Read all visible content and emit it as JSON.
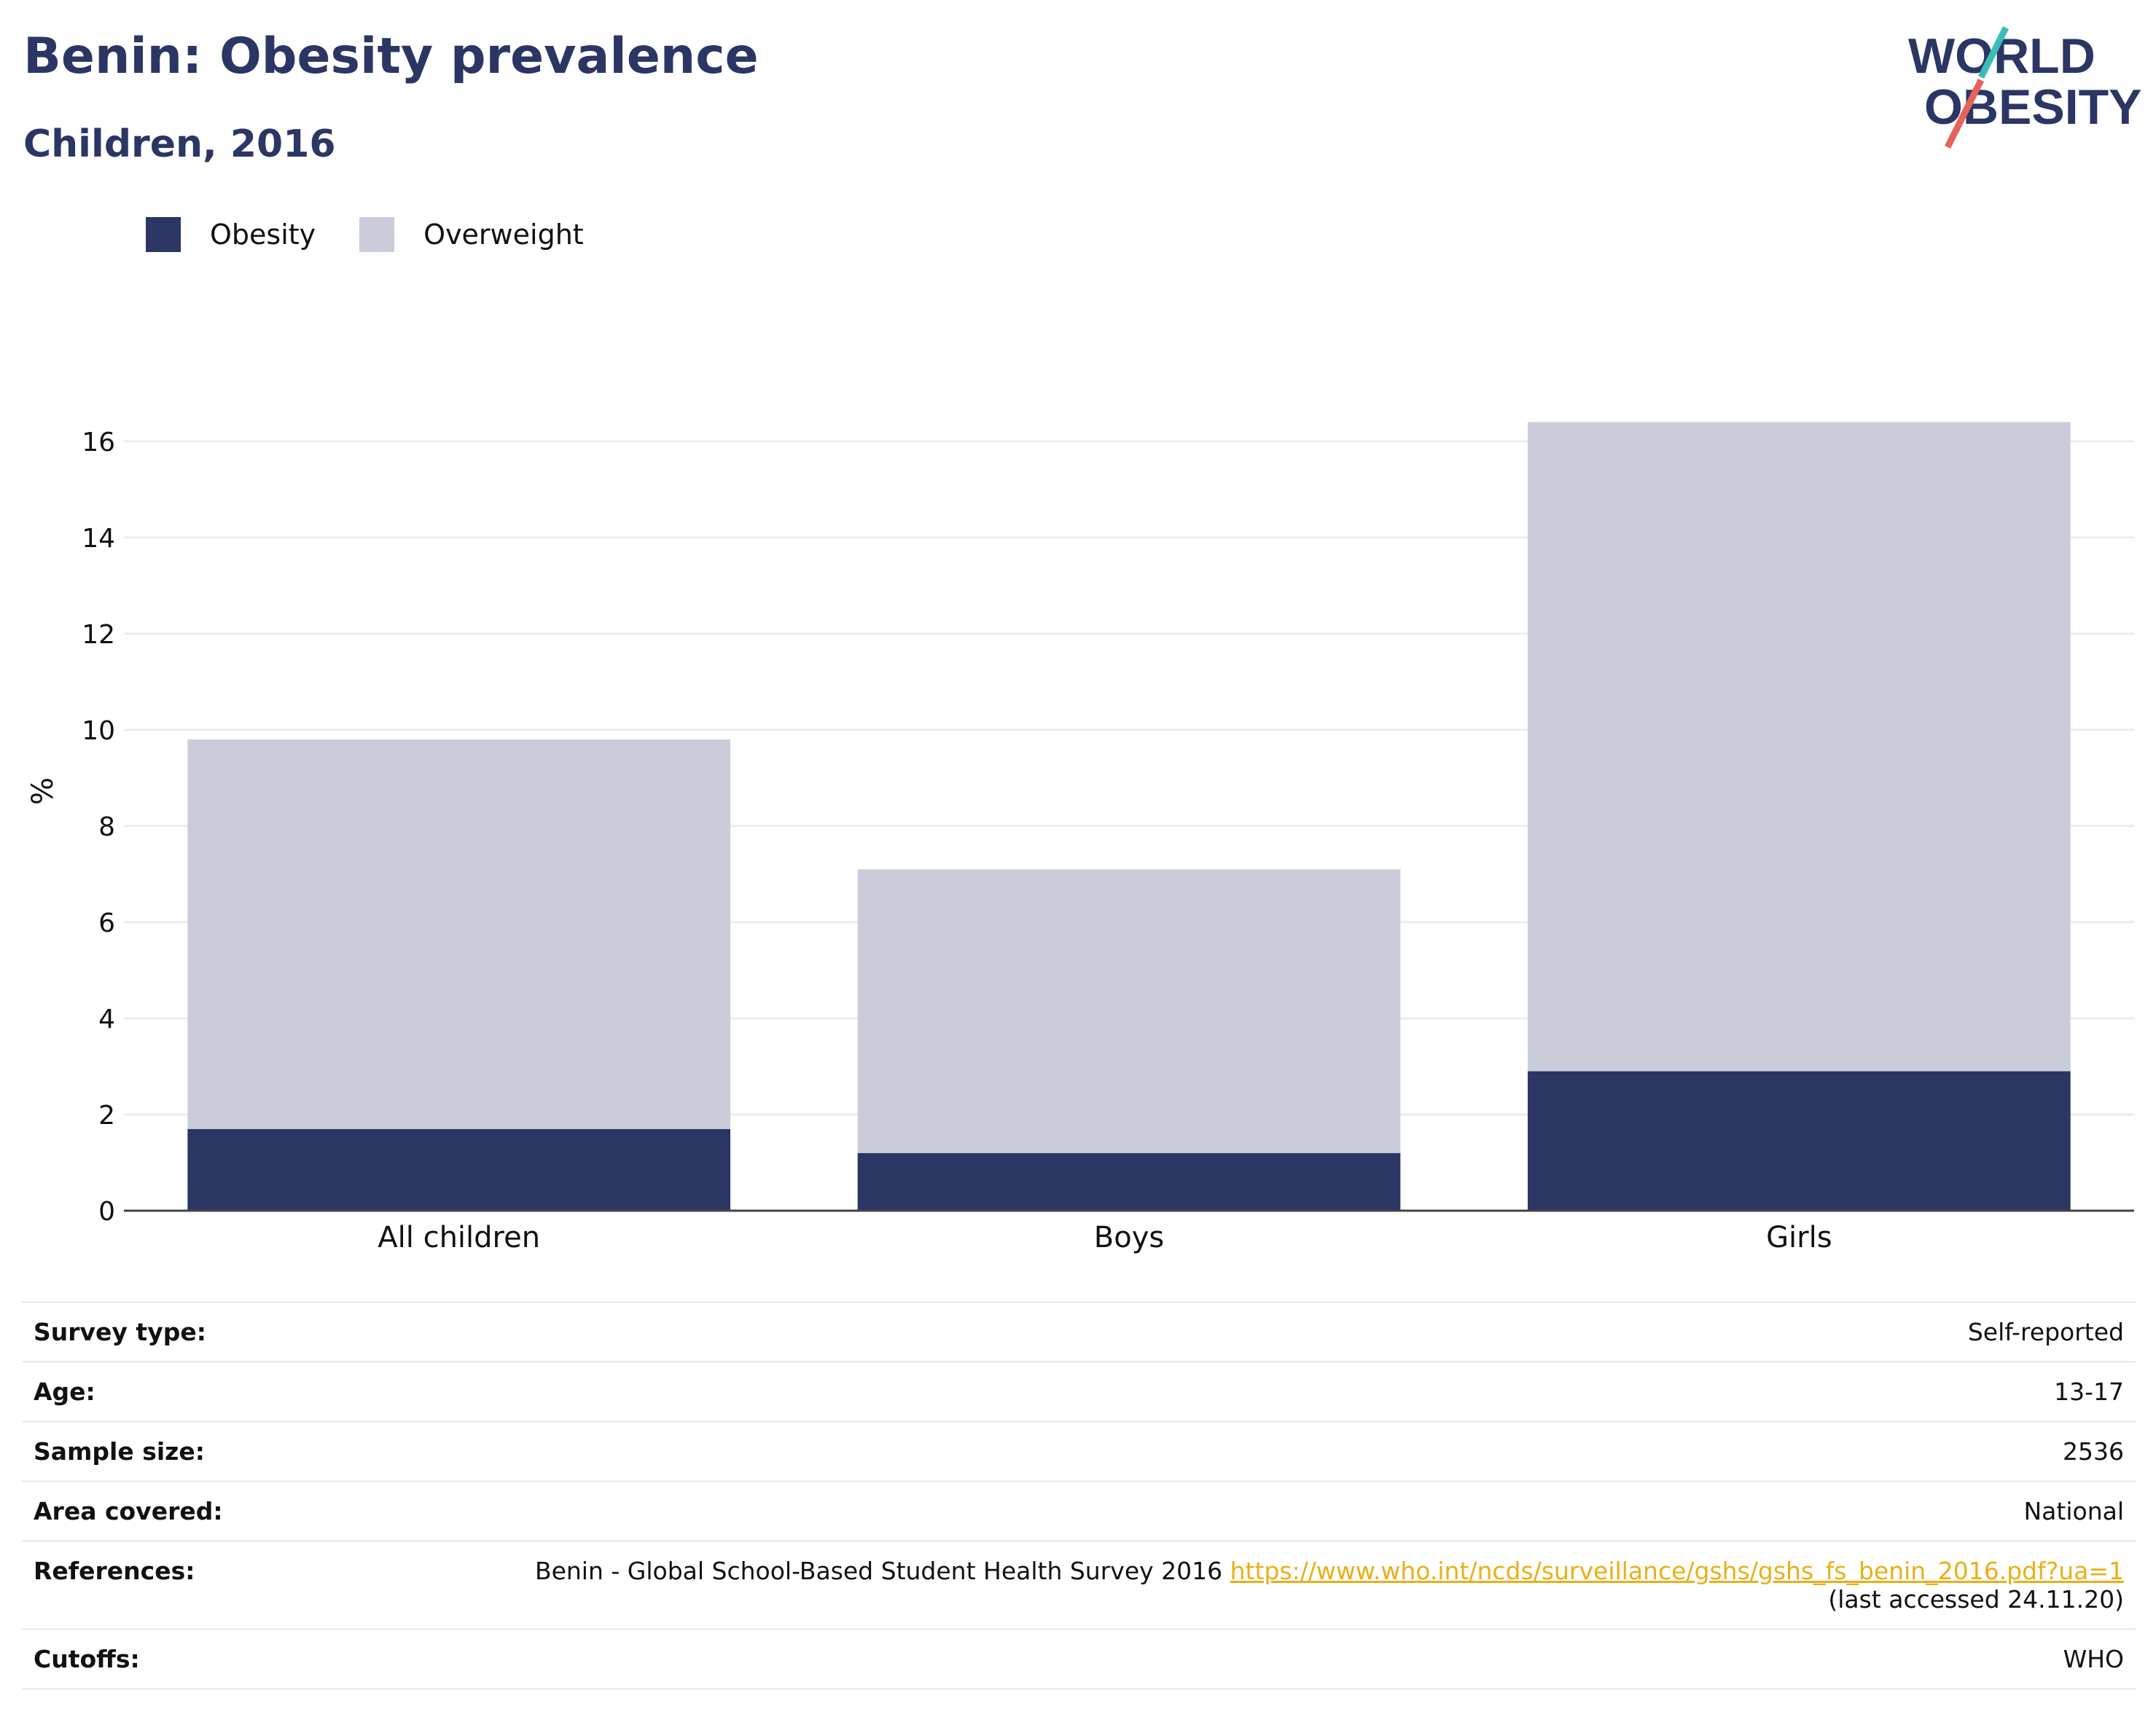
{
  "header": {
    "title": "Benin: Obesity prevalence",
    "subtitle": "Children, 2016"
  },
  "logo": {
    "line1": "WORLD",
    "line2": "OBESITY"
  },
  "colors": {
    "obesity": "#2b3664",
    "overweight": "#cacdd9",
    "logo_teal": "#3bbdb7",
    "logo_red": "#e7625a",
    "link": "#e8b017"
  },
  "legend": {
    "obesity_label": "Obesity",
    "overweight_label": "Overweight"
  },
  "chart_data": {
    "type": "bar",
    "stacked": true,
    "categories": [
      "All children",
      "Boys",
      "Girls"
    ],
    "series": [
      {
        "name": "Obesity",
        "values": [
          1.7,
          1.2,
          2.9
        ]
      },
      {
        "name": "Overweight",
        "values": [
          8.1,
          5.9,
          13.5
        ]
      }
    ],
    "totals": [
      9.8,
      7.1,
      16.4
    ],
    "ylabel": "%",
    "ylim": [
      0,
      17.3
    ],
    "yticks": [
      0,
      2,
      4,
      6,
      8,
      10,
      12,
      14,
      16
    ],
    "grid": true,
    "legend_position": "top-left"
  },
  "info": {
    "survey_type": {
      "label": "Survey type:",
      "value": "Self-reported"
    },
    "age": {
      "label": "Age:",
      "value": "13-17"
    },
    "sample_size": {
      "label": "Sample size:",
      "value": "2536"
    },
    "area_covered": {
      "label": "Area covered:",
      "value": "National"
    },
    "references": {
      "label": "References:",
      "text": "Benin - Global School-Based Student Health Survey 2016",
      "url": "https://www.who.int/ncds/surveillance/gshs/gshs_fs_benin_2016.pdf?ua=1",
      "accessed": "(last accessed 24.11.20)"
    },
    "cutoffs": {
      "label": "Cutoffs:",
      "value": "WHO"
    }
  }
}
